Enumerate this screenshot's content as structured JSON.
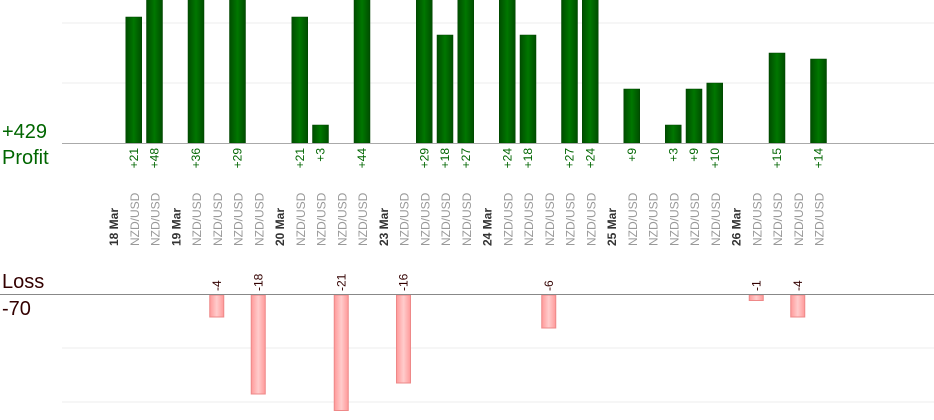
{
  "summary": {
    "profit_total": "+429",
    "profit_label": "Profit",
    "loss_label": "Loss",
    "loss_total": "-70"
  },
  "colors": {
    "profit_bar": "#006600",
    "loss_bar": "#ffaaaa",
    "profit_text": "#006600",
    "loss_text": "#330000",
    "pair_text": "#999999",
    "date_text": "#333333"
  },
  "chart_data": {
    "type": "bar",
    "columns": [
      {
        "kind": "date",
        "label": "18 Mar"
      },
      {
        "kind": "trade",
        "label": "NZD/USD",
        "value": 21
      },
      {
        "kind": "trade",
        "label": "NZD/USD",
        "value": 48
      },
      {
        "kind": "date",
        "label": "19 Mar"
      },
      {
        "kind": "trade",
        "label": "NZD/USD",
        "value": 36
      },
      {
        "kind": "trade",
        "label": "NZD/USD",
        "value": -4
      },
      {
        "kind": "trade",
        "label": "NZD/USD",
        "value": 29
      },
      {
        "kind": "trade",
        "label": "NZD/USD",
        "value": -18
      },
      {
        "kind": "date",
        "label": "20 Mar"
      },
      {
        "kind": "trade",
        "label": "NZD/USD",
        "value": 21
      },
      {
        "kind": "trade",
        "label": "NZD/USD",
        "value": 3
      },
      {
        "kind": "trade",
        "label": "NZD/USD",
        "value": -21
      },
      {
        "kind": "trade",
        "label": "NZD/USD",
        "value": 44
      },
      {
        "kind": "date",
        "label": "23 Mar"
      },
      {
        "kind": "trade",
        "label": "NZD/USD",
        "value": -16
      },
      {
        "kind": "trade",
        "label": "NZD/USD",
        "value": 29
      },
      {
        "kind": "trade",
        "label": "NZD/USD",
        "value": 18
      },
      {
        "kind": "trade",
        "label": "NZD/USD",
        "value": 27
      },
      {
        "kind": "date",
        "label": "24 Mar"
      },
      {
        "kind": "trade",
        "label": "NZD/USD",
        "value": 24
      },
      {
        "kind": "trade",
        "label": "NZD/USD",
        "value": 18
      },
      {
        "kind": "trade",
        "label": "NZD/USD",
        "value": -6
      },
      {
        "kind": "trade",
        "label": "NZD/USD",
        "value": 27
      },
      {
        "kind": "trade",
        "label": "NZD/USD",
        "value": 24
      },
      {
        "kind": "date",
        "label": "25 Mar"
      },
      {
        "kind": "trade",
        "label": "NZD/USD",
        "value": 9
      },
      {
        "kind": "trade",
        "label": "NZD/USD",
        "value": null
      },
      {
        "kind": "trade",
        "label": "NZD/USD",
        "value": 3
      },
      {
        "kind": "trade",
        "label": "NZD/USD",
        "value": 9
      },
      {
        "kind": "trade",
        "label": "NZD/USD",
        "value": 10
      },
      {
        "kind": "date",
        "label": "26 Mar"
      },
      {
        "kind": "trade",
        "label": "NZD/USD",
        "value": -1
      },
      {
        "kind": "trade",
        "label": "NZD/USD",
        "value": 15
      },
      {
        "kind": "trade",
        "label": "NZD/USD",
        "value": -4
      },
      {
        "kind": "trade",
        "label": "NZD/USD",
        "value": 14
      }
    ]
  }
}
